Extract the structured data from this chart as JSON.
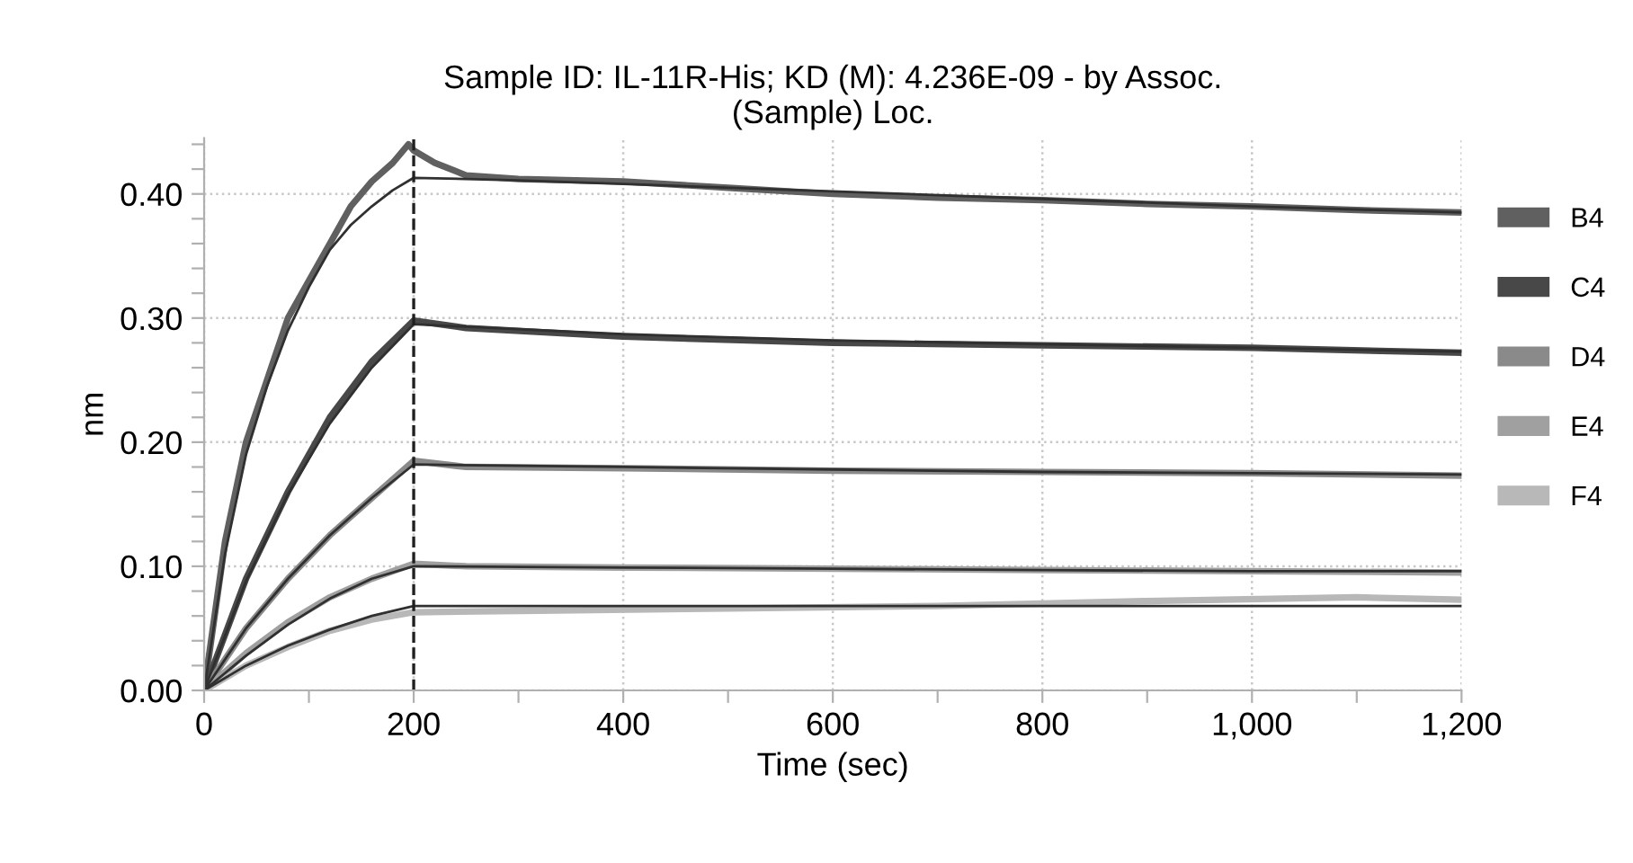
{
  "chart_data": {
    "type": "line",
    "title": "Sample ID: IL-11R-His; KD (M): 4.236E-09 - by Assoc.\n(Sample) Loc.",
    "xlabel": "Time (sec)",
    "ylabel": "nm",
    "xlim": [
      0,
      1200
    ],
    "ylim": [
      0,
      0.445
    ],
    "xticks": [
      0,
      {
        "value": 100,
        "label": null
      },
      200,
      {
        "value": 300,
        "label": null
      },
      400,
      {
        "value": 500,
        "label": null
      },
      600,
      {
        "value": 700,
        "label": null
      },
      800,
      {
        "value": 900,
        "label": null
      },
      {
        "value": 1000,
        "label": "1,000"
      },
      {
        "value": 1100,
        "label": null
      },
      {
        "value": 1200,
        "label": "1,200"
      }
    ],
    "yticks": [
      {
        "value": 0,
        "label": "0.00"
      },
      {
        "value": 0.02,
        "label": null
      },
      {
        "value": 0.04,
        "label": null
      },
      {
        "value": 0.06,
        "label": null
      },
      {
        "value": 0.08,
        "label": null
      },
      {
        "value": 0.1,
        "label": "0.10"
      },
      {
        "value": 0.12,
        "label": null
      },
      {
        "value": 0.14,
        "label": null
      },
      {
        "value": 0.16,
        "label": null
      },
      {
        "value": 0.18,
        "label": null
      },
      {
        "value": 0.2,
        "label": "0.20"
      },
      {
        "value": 0.22,
        "label": null
      },
      {
        "value": 0.24,
        "label": null
      },
      {
        "value": 0.26,
        "label": null
      },
      {
        "value": 0.28,
        "label": null
      },
      {
        "value": 0.3,
        "label": "0.30"
      },
      {
        "value": 0.32,
        "label": null
      },
      {
        "value": 0.34,
        "label": null
      },
      {
        "value": 0.36,
        "label": null
      },
      {
        "value": 0.38,
        "label": null
      },
      {
        "value": 0.4,
        "label": "0.40"
      },
      {
        "value": 0.42,
        "label": null
      },
      {
        "value": 0.44,
        "label": null
      }
    ],
    "grid": true,
    "legend": "right",
    "line_style": "solid",
    "marker": "none",
    "ref_lines": [
      {
        "axis": "x",
        "value": 200,
        "label": null,
        "color": "#202020",
        "line_style": "dashed"
      }
    ],
    "series": [
      {
        "name": "B4",
        "color": "#606060",
        "x": [
          0,
          20,
          40,
          60,
          80,
          100,
          120,
          140,
          160,
          180,
          195,
          200,
          220,
          250,
          300,
          400,
          500,
          600,
          700,
          800,
          900,
          1000,
          1100,
          1200
        ],
        "values": [
          0,
          0.12,
          0.2,
          0.25,
          0.3,
          0.33,
          0.36,
          0.39,
          0.41,
          0.425,
          0.44,
          0.435,
          0.425,
          0.415,
          0.412,
          0.41,
          0.405,
          0.4,
          0.397,
          0.395,
          0.392,
          0.39,
          0.387,
          0.385
        ]
      },
      {
        "name": "C4",
        "color": "#484848",
        "x": [
          0,
          40,
          80,
          120,
          160,
          200,
          250,
          400,
          600,
          800,
          1000,
          1200
        ],
        "values": [
          0,
          0.09,
          0.16,
          0.22,
          0.265,
          0.298,
          0.292,
          0.285,
          0.28,
          0.278,
          0.276,
          0.272
        ]
      },
      {
        "name": "D4",
        "color": "#8a8a8a",
        "x": [
          0,
          40,
          80,
          120,
          160,
          200,
          250,
          400,
          600,
          800,
          1000,
          1200
        ],
        "values": [
          0,
          0.05,
          0.09,
          0.125,
          0.155,
          0.185,
          0.18,
          0.179,
          0.177,
          0.176,
          0.175,
          0.173
        ]
      },
      {
        "name": "E4",
        "color": "#a0a0a0",
        "x": [
          0,
          40,
          80,
          120,
          160,
          200,
          250,
          400,
          600,
          800,
          1000,
          1200
        ],
        "values": [
          0,
          0.03,
          0.055,
          0.075,
          0.09,
          0.102,
          0.1,
          0.099,
          0.098,
          0.097,
          0.096,
          0.095
        ]
      },
      {
        "name": "F4",
        "color": "#b8b8b8",
        "x": [
          0,
          40,
          80,
          120,
          160,
          200,
          300,
          500,
          700,
          900,
          1100,
          1200
        ],
        "values": [
          0,
          0.02,
          0.035,
          0.048,
          0.057,
          0.063,
          0.064,
          0.066,
          0.068,
          0.072,
          0.075,
          0.073
        ]
      },
      {
        "color": "#303030",
        "x": [
          0,
          20,
          40,
          60,
          80,
          100,
          120,
          140,
          160,
          180,
          200,
          300,
          400,
          600,
          800,
          1000,
          1200
        ],
        "values": [
          0,
          0.11,
          0.19,
          0.245,
          0.29,
          0.325,
          0.355,
          0.375,
          0.39,
          0.403,
          0.413,
          0.411,
          0.408,
          0.402,
          0.396,
          0.39,
          0.385
        ]
      },
      {
        "color": "#303030",
        "x": [
          0,
          40,
          80,
          120,
          160,
          200,
          400,
          600,
          800,
          1000,
          1200
        ],
        "values": [
          0,
          0.088,
          0.158,
          0.215,
          0.26,
          0.295,
          0.287,
          0.282,
          0.279,
          0.276,
          0.273
        ]
      },
      {
        "color": "#303030",
        "x": [
          0,
          40,
          80,
          120,
          160,
          200,
          400,
          600,
          800,
          1000,
          1200
        ],
        "values": [
          0,
          0.05,
          0.09,
          0.125,
          0.155,
          0.182,
          0.18,
          0.178,
          0.176,
          0.175,
          0.174
        ]
      },
      {
        "color": "#303030",
        "x": [
          0,
          40,
          80,
          120,
          160,
          200,
          400,
          600,
          800,
          1000,
          1200
        ],
        "values": [
          0,
          0.028,
          0.053,
          0.074,
          0.09,
          0.1,
          0.099,
          0.098,
          0.097,
          0.096,
          0.096
        ]
      },
      {
        "color": "#303030",
        "x": [
          0,
          40,
          80,
          120,
          160,
          200,
          400,
          600,
          800,
          1000,
          1200
        ],
        "values": [
          0,
          0.02,
          0.036,
          0.049,
          0.06,
          0.068,
          0.068,
          0.068,
          0.068,
          0.068,
          0.068
        ]
      }
    ]
  }
}
